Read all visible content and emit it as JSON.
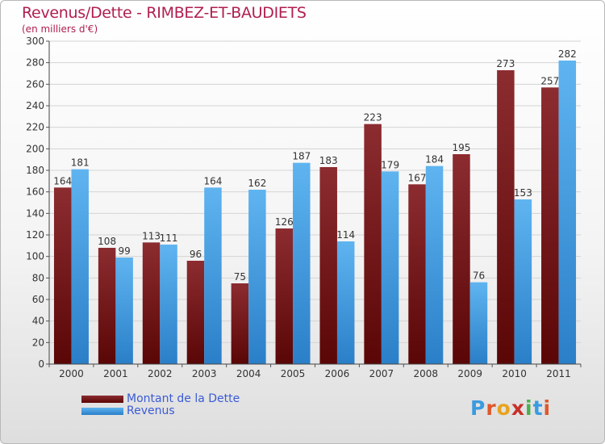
{
  "header": {
    "title": "Revenus/Dette - RIMBEZ-ET-BAUDIETS",
    "subtitle": "(en milliers d'€)"
  },
  "chart_data": {
    "type": "bar",
    "title": "Revenus/Dette - RIMBEZ-ET-BAUDIETS",
    "subtitle": "(en milliers d'€)",
    "categories": [
      "2000",
      "2001",
      "2002",
      "2003",
      "2004",
      "2005",
      "2006",
      "2007",
      "2008",
      "2009",
      "2010",
      "2011"
    ],
    "series": [
      {
        "name": "Montant de la Dette",
        "color": "#7a1a1f",
        "values": [
          164,
          108,
          113,
          96,
          75,
          126,
          183,
          223,
          167,
          195,
          273,
          257
        ]
      },
      {
        "name": "Revenus",
        "color": "#3f9fe3",
        "values": [
          181,
          99,
          111,
          164,
          162,
          187,
          114,
          179,
          184,
          76,
          153,
          282
        ]
      }
    ],
    "ylim": [
      0,
      300
    ],
    "yticks": [
      0,
      20,
      40,
      60,
      80,
      100,
      120,
      140,
      160,
      180,
      200,
      220,
      240,
      260,
      280,
      300
    ],
    "grid": true,
    "legend": "bottom-left"
  },
  "legend": {
    "items": [
      {
        "label": "Montant de la Dette",
        "color": "#7a1a1f"
      },
      {
        "label": "Revenus",
        "color": "#3f9fe3"
      }
    ]
  },
  "logo": {
    "text": "Proxiti",
    "colors": [
      "#3a9be0",
      "#e0572b",
      "#e8a31d",
      "#c8302a",
      "#4caf50",
      "#3a9be0",
      "#e0572b"
    ]
  }
}
